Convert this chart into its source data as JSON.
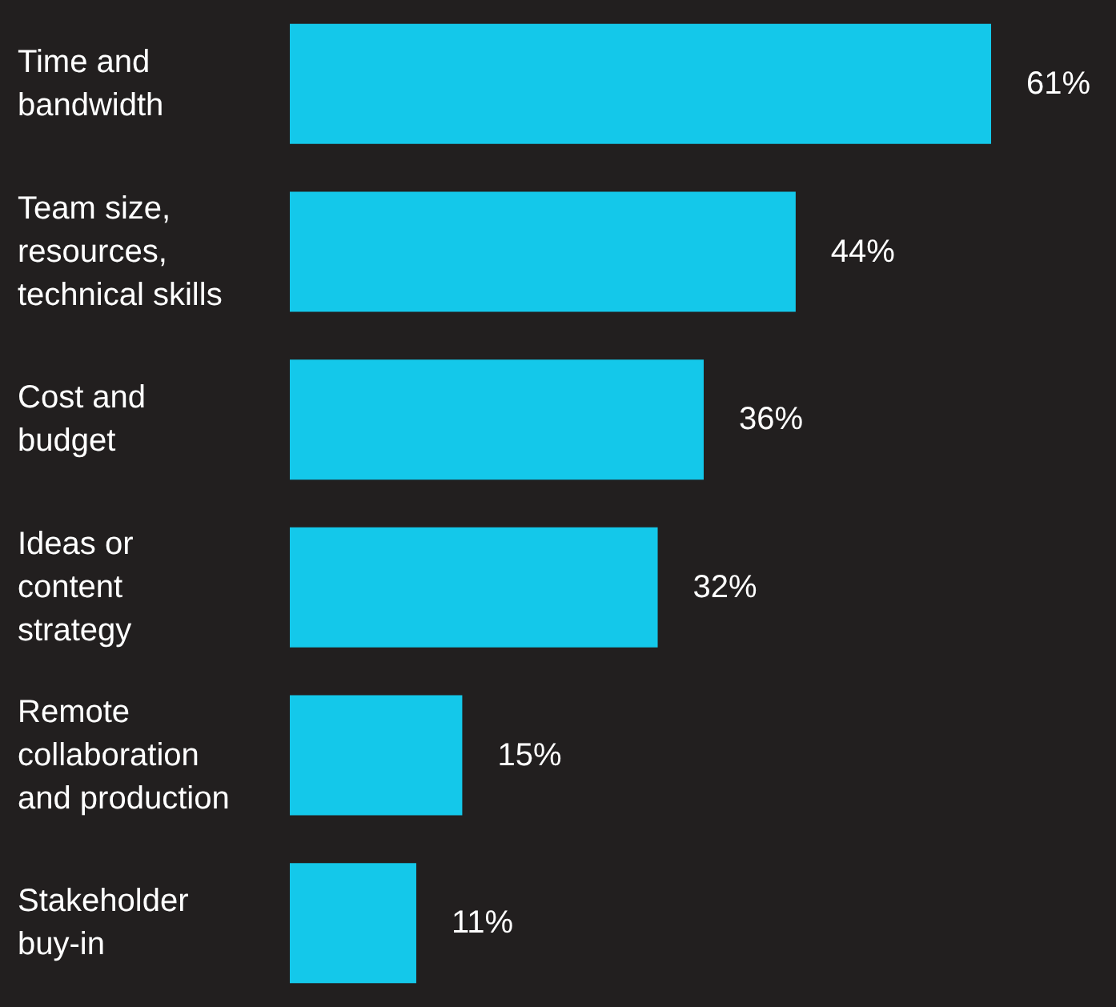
{
  "chart_data": {
    "type": "bar",
    "orientation": "horizontal",
    "categories": [
      "Time and\nbandwidth",
      "Team size,\nresources,\ntechnical skills",
      "Cost and\nbudget",
      "Ideas or\ncontent\nstrategy",
      "Remote\ncollaboration\nand production",
      "Stakeholder\nbuy-in"
    ],
    "values": [
      61,
      44,
      36,
      32,
      15,
      11
    ],
    "value_labels": [
      "61%",
      "44%",
      "36%",
      "32%",
      "15%",
      "11%"
    ],
    "color": "#14c8ea",
    "tick_labels": "y"
  }
}
